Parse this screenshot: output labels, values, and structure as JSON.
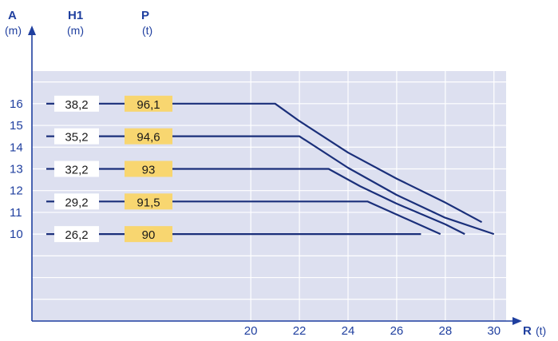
{
  "chart_data": {
    "type": "line",
    "y_axis": {
      "name": "A",
      "unit": "(m)"
    },
    "h1_column": {
      "name": "H1",
      "unit": "(m)"
    },
    "p_column": {
      "name": "P",
      "unit": "(t)"
    },
    "x_axis": {
      "name": "R",
      "unit": "(t)"
    },
    "xlim": [
      11,
      30.5
    ],
    "ylim": [
      6,
      17.5
    ],
    "x_ticks": [
      "20",
      "22",
      "24",
      "26",
      "28",
      "30"
    ],
    "y_ticks": [
      "10",
      "11",
      "12",
      "13",
      "14",
      "15",
      "16"
    ],
    "grid": true,
    "colors": {
      "plot_bg": "#dde0f0",
      "grid": "#ffffff",
      "axis": "#1f3f9f",
      "line": "#1a2f7a",
      "h1_box": "#ffffff",
      "p_box": "#f8d670"
    },
    "series": [
      {
        "A": 16,
        "H1": "38,2",
        "P": "96,1",
        "points": [
          [
            21,
            16
          ],
          [
            22,
            15.2
          ],
          [
            24,
            13.75
          ],
          [
            26,
            12.55
          ],
          [
            28,
            11.45
          ],
          [
            29.5,
            10.55
          ]
        ]
      },
      {
        "A": 14.5,
        "H1": "35,2",
        "P": "94,6",
        "points": [
          [
            22,
            14.5
          ],
          [
            24,
            13.05
          ],
          [
            26,
            11.8
          ],
          [
            28,
            10.75
          ],
          [
            30,
            10
          ]
        ]
      },
      {
        "A": 13,
        "H1": "32,2",
        "P": "93",
        "points": [
          [
            23.2,
            13
          ],
          [
            24.5,
            12.2
          ],
          [
            26,
            11.4
          ],
          [
            28,
            10.45
          ],
          [
            28.8,
            10
          ]
        ]
      },
      {
        "A": 11.5,
        "H1": "29,2",
        "P": "91,5",
        "points": [
          [
            24.8,
            11.5
          ],
          [
            26,
            10.9
          ],
          [
            27.8,
            10
          ]
        ]
      },
      {
        "A": 10,
        "H1": "26,2",
        "P": "90",
        "points": [
          [
            27,
            10
          ]
        ]
      }
    ]
  }
}
